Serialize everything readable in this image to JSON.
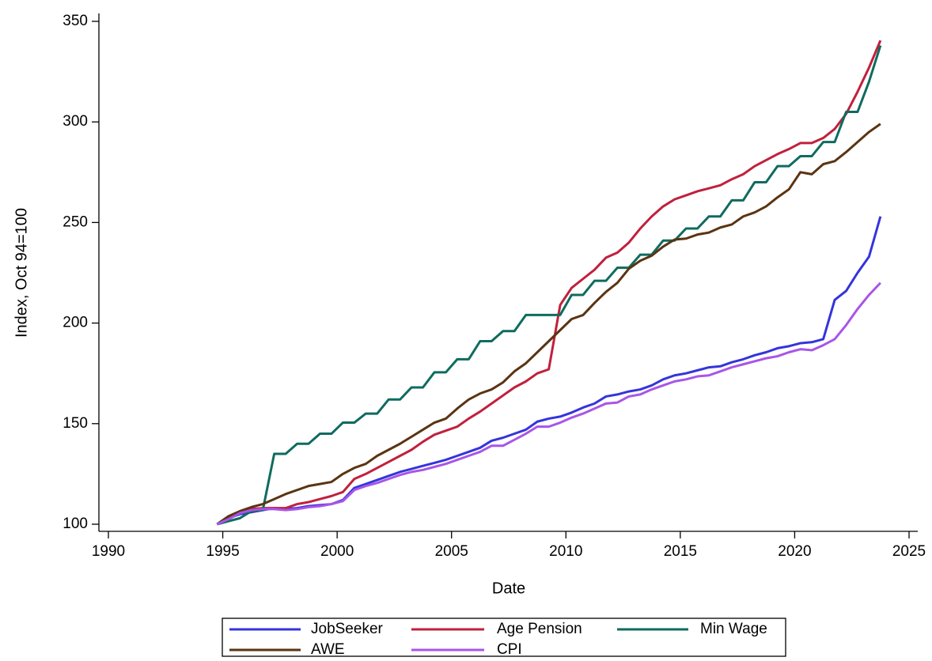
{
  "chart_data": {
    "type": "line",
    "x_label": "Date",
    "y_label": "Index, Oct 94=100",
    "xlim": [
      1990,
      2025
    ],
    "xticks": [
      1990,
      1995,
      2000,
      2005,
      2010,
      2015,
      2020,
      2025
    ],
    "ylim": [
      100,
      350
    ],
    "yticks": [
      100,
      150,
      200,
      250,
      300,
      350
    ],
    "grid": false,
    "legend": "bottom",
    "x": [
      1994.75,
      1995.25,
      1995.75,
      1996.25,
      1996.75,
      1997.25,
      1997.75,
      1998.25,
      1998.75,
      1999.25,
      1999.75,
      2000.25,
      2000.75,
      2001.25,
      2001.75,
      2002.25,
      2002.75,
      2003.25,
      2003.75,
      2004.25,
      2004.75,
      2005.25,
      2005.75,
      2006.25,
      2006.75,
      2007.25,
      2007.75,
      2008.25,
      2008.75,
      2009.25,
      2009.75,
      2010.25,
      2010.75,
      2011.25,
      2011.75,
      2012.25,
      2012.75,
      2013.25,
      2013.75,
      2014.25,
      2014.75,
      2015.25,
      2015.75,
      2016.25,
      2016.75,
      2017.25,
      2017.75,
      2018.25,
      2018.75,
      2019.25,
      2019.75,
      2020.25,
      2020.75,
      2021.25,
      2021.75,
      2022.25,
      2022.75,
      2023.25,
      2023.75
    ],
    "series": [
      {
        "name": "JobSeeker",
        "color": "#3434dc",
        "values": [
          100,
          103,
          105,
          106,
          107,
          108,
          107.5,
          108,
          109,
          109.5,
          110,
          112,
          118,
          120,
          122,
          124,
          126,
          127.5,
          129,
          130.5,
          132,
          134,
          136,
          138,
          141.5,
          143,
          145,
          147,
          151,
          152.5,
          153.5,
          155.5,
          158,
          160,
          163.5,
          164.5,
          166,
          167,
          169,
          172,
          174,
          175,
          176.5,
          178,
          178.5,
          180.5,
          182,
          184,
          185.5,
          187.5,
          188.5,
          190,
          190.5,
          192,
          211.5,
          216,
          225,
          233,
          253
        ]
      },
      {
        "name": "Age Pension",
        "color": "#c0203c",
        "values": [
          100,
          103,
          106,
          107.5,
          108,
          108,
          108,
          110,
          111,
          112.5,
          114,
          116,
          122.5,
          125,
          128,
          131,
          134,
          137,
          141,
          144.5,
          146.5,
          148.5,
          152.5,
          156,
          160,
          164,
          168,
          171,
          175,
          177,
          209,
          217.5,
          222,
          226.5,
          232.5,
          235,
          240,
          247,
          253,
          258,
          261.5,
          263.5,
          265.5,
          267,
          268.5,
          271.5,
          274,
          278,
          281,
          284,
          286.5,
          289.5,
          289.5,
          292,
          296.5,
          304,
          315,
          327,
          340.5
        ]
      },
      {
        "name": "Min Wage",
        "color": "#0f6b5f",
        "values": [
          100,
          101.5,
          103,
          106.5,
          107,
          135,
          135,
          140,
          140,
          145,
          145,
          150.5,
          150.5,
          155,
          155,
          162,
          162,
          168,
          168,
          175.5,
          175.5,
          182,
          182,
          191,
          191,
          196,
          196,
          204,
          204,
          204,
          204,
          214,
          214,
          221,
          221,
          227.5,
          227.5,
          234,
          234,
          241,
          241,
          247,
          247,
          253,
          253,
          261,
          261,
          270,
          270,
          278,
          278,
          283,
          283,
          290,
          290,
          305,
          305,
          320,
          338
        ]
      },
      {
        "name": "AWE",
        "color": "#5a3412",
        "values": [
          100,
          104,
          106.5,
          108.5,
          110,
          112.5,
          115,
          117,
          119,
          120,
          121,
          125,
          128,
          130,
          134,
          137,
          140,
          143.5,
          147,
          150.5,
          152.5,
          157.5,
          162,
          165,
          167,
          170.5,
          176,
          180,
          185.5,
          191,
          196.5,
          202,
          204,
          210,
          215.5,
          220,
          227,
          231,
          233.5,
          238,
          241.5,
          242,
          244,
          245,
          247.5,
          249,
          253,
          255,
          258,
          262.5,
          266.5,
          275,
          274,
          279,
          280.5,
          285,
          290,
          295,
          299
        ]
      },
      {
        "name": "CPI",
        "color": "#a855e8",
        "values": [
          100,
          102.5,
          105.5,
          107,
          107.5,
          107.5,
          107,
          107.5,
          108.5,
          109,
          110,
          111.5,
          117,
          119,
          120.5,
          122.5,
          124.5,
          126,
          127,
          128.5,
          130,
          132,
          134,
          136,
          139,
          139,
          142,
          145,
          148.5,
          148.5,
          150.5,
          153,
          155,
          157.5,
          160,
          160.5,
          163.5,
          164.5,
          167,
          169,
          171,
          172,
          173.5,
          174,
          176,
          178,
          179.5,
          181,
          182.5,
          183.5,
          185.5,
          187,
          186.5,
          189,
          192,
          199,
          207,
          214,
          220
        ]
      }
    ]
  }
}
